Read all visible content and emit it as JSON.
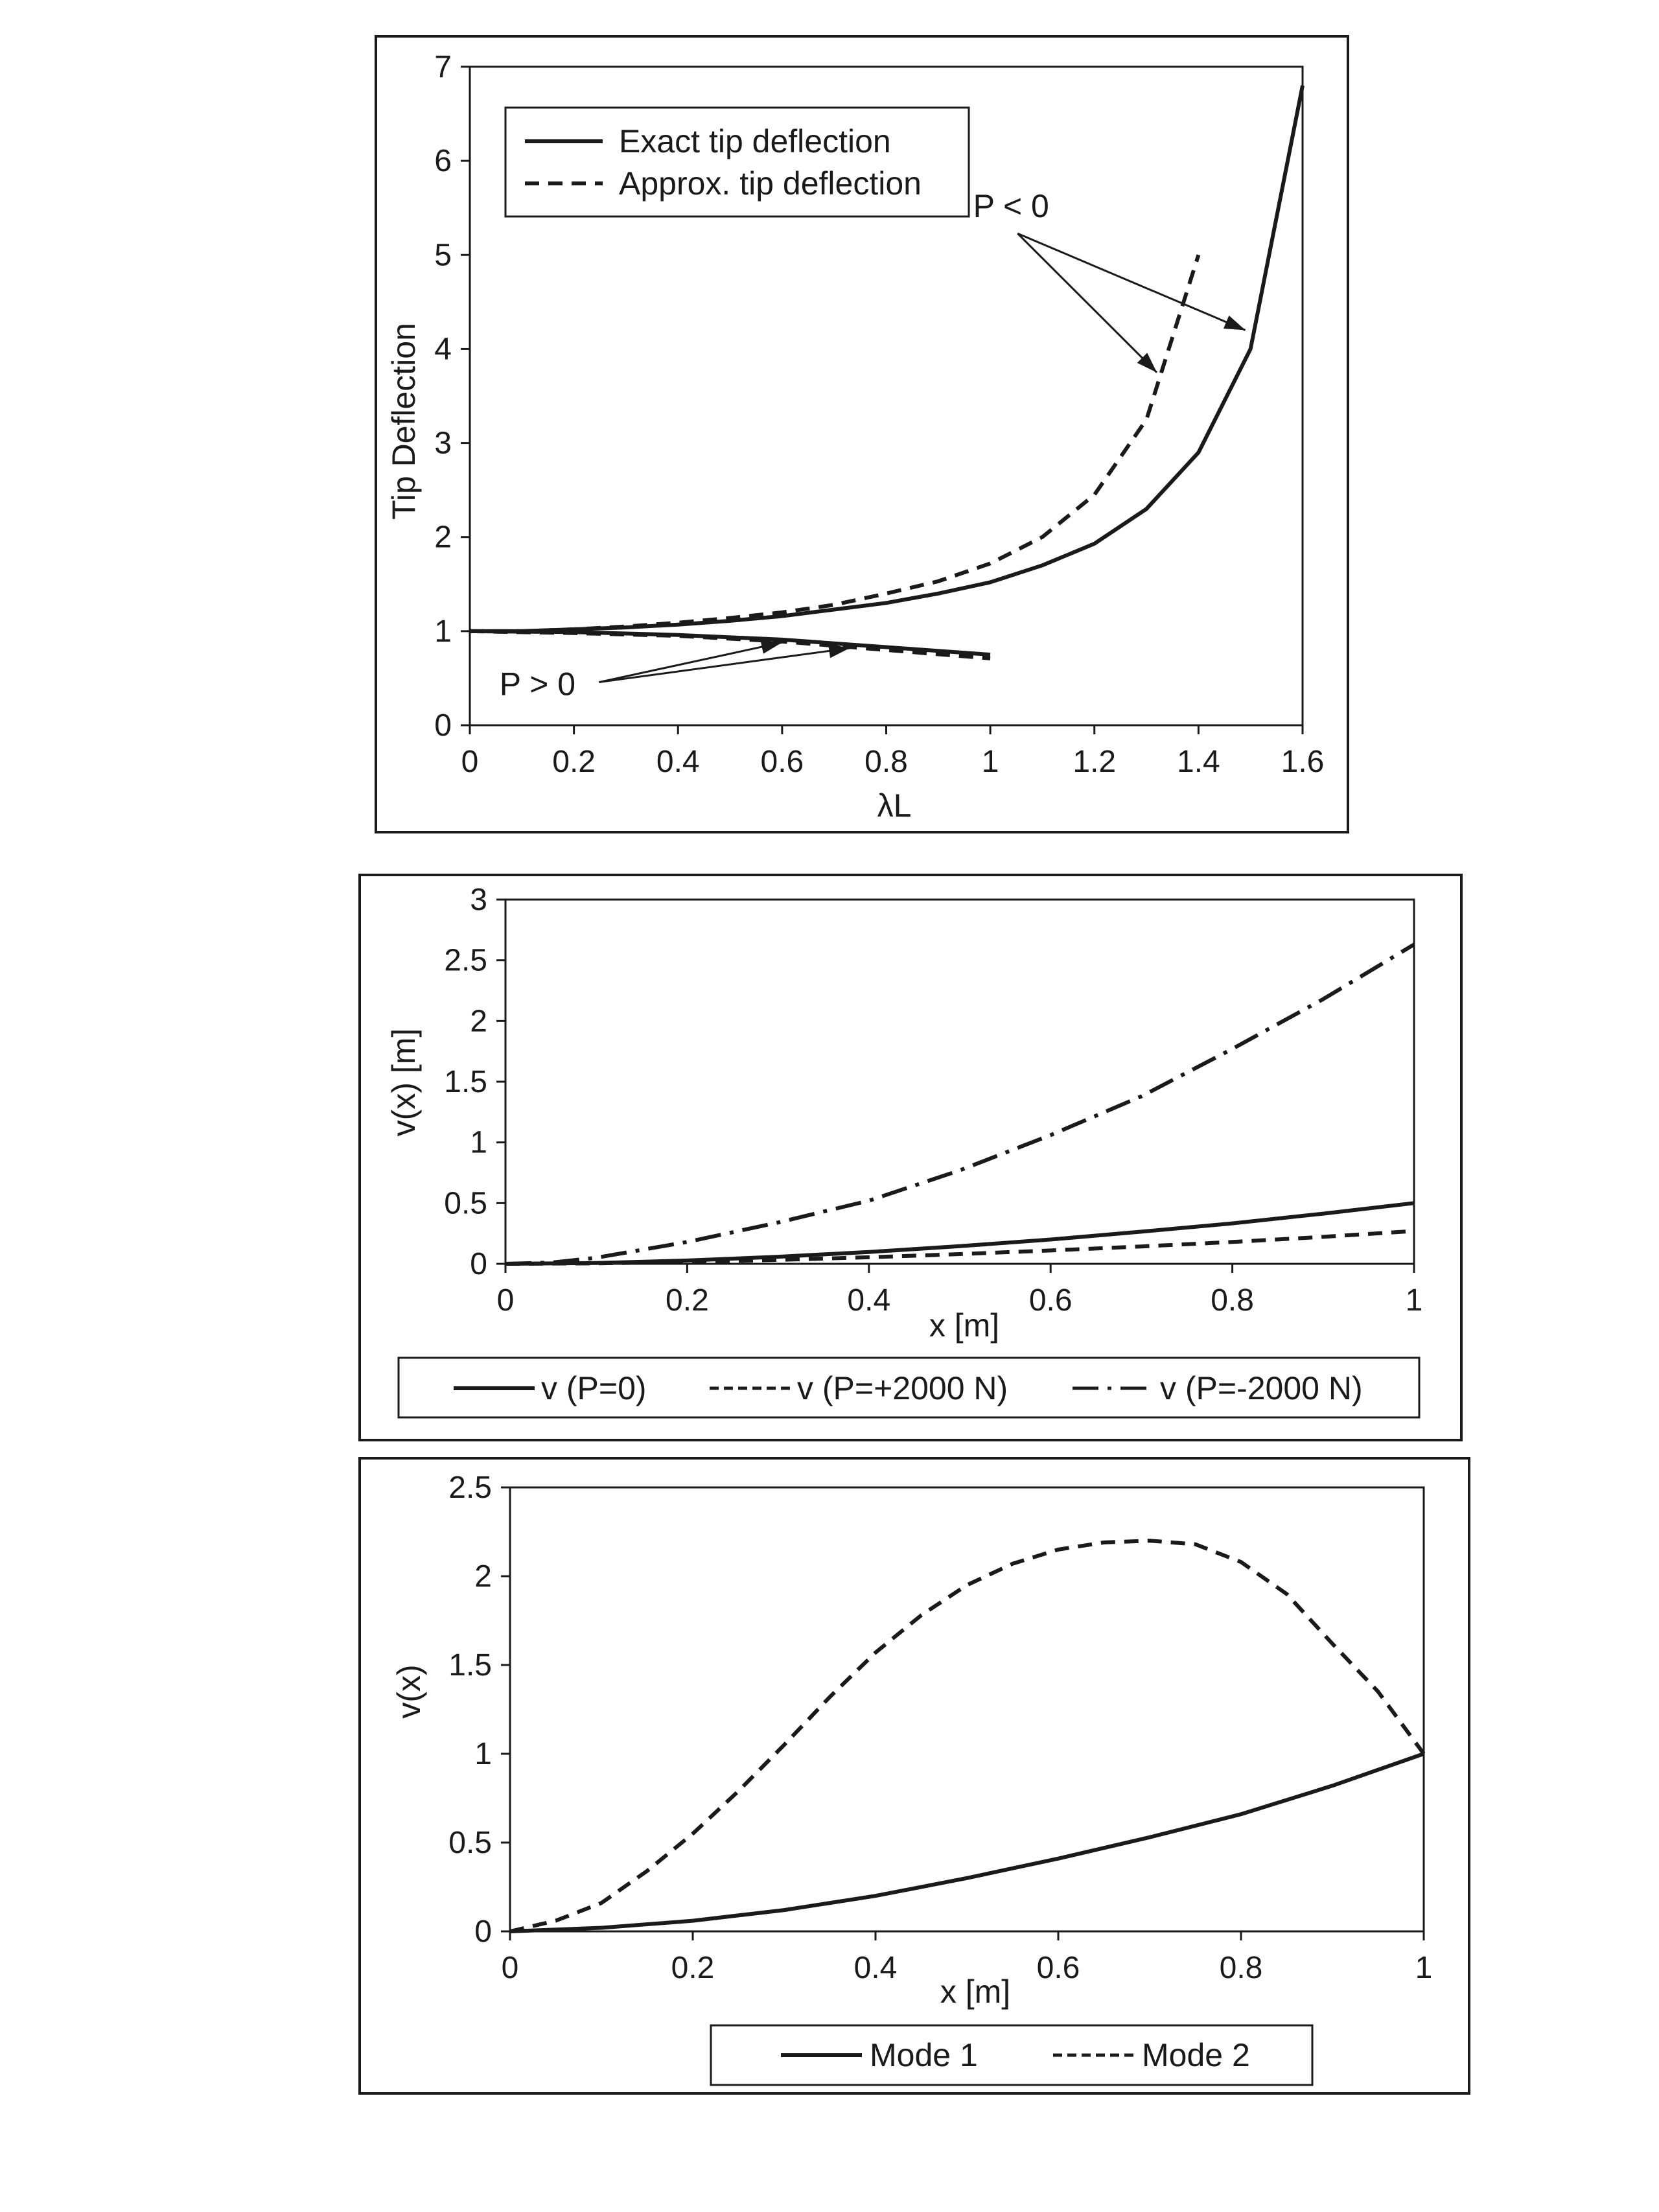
{
  "chart_data": [
    {
      "type": "line",
      "title": "",
      "xlabel": "λL",
      "ylabel": "Tip Deflection",
      "xlim": [
        0,
        1.6
      ],
      "ylim": [
        0,
        7
      ],
      "xticks": [
        "0",
        "0.2",
        "0.4",
        "0.6",
        "0.8",
        "1",
        "1.2",
        "1.4",
        "1.6"
      ],
      "yticks": [
        "0",
        "1",
        "2",
        "3",
        "4",
        "5",
        "6",
        "7"
      ],
      "grid": false,
      "legend_position": "top-left",
      "series": [
        {
          "name": "Exact tip deflection",
          "style": "solid",
          "x": [
            0,
            0.1,
            0.2,
            0.3,
            0.4,
            0.5,
            0.6,
            0.7,
            0.8,
            0.9,
            1.0,
            1.1,
            1.2,
            1.3,
            1.4,
            1.5,
            1.6
          ],
          "y": [
            1.0,
            1.0,
            1.02,
            1.04,
            1.07,
            1.11,
            1.16,
            1.23,
            1.3,
            1.4,
            1.52,
            1.7,
            1.93,
            2.3,
            2.9,
            4.0,
            6.8
          ]
        },
        {
          "name": "Approx. tip deflection",
          "style": "dashed",
          "x": [
            0,
            0.1,
            0.2,
            0.3,
            0.4,
            0.5,
            0.6,
            0.7,
            0.8,
            0.9,
            1.0,
            1.1,
            1.2,
            1.3,
            1.4
          ],
          "y": [
            1.0,
            1.0,
            1.02,
            1.05,
            1.09,
            1.14,
            1.2,
            1.28,
            1.4,
            1.53,
            1.72,
            2.0,
            2.45,
            3.25,
            5.0
          ]
        },
        {
          "name": "Exact tip deflection",
          "style": "solid",
          "x": [
            0,
            0.2,
            0.4,
            0.6,
            0.8,
            1.0
          ],
          "y": [
            1.0,
            0.99,
            0.96,
            0.91,
            0.83,
            0.75
          ]
        },
        {
          "name": "Approx. tip deflection",
          "style": "dashed",
          "x": [
            0,
            0.2,
            0.4,
            0.6,
            0.8,
            1.0
          ],
          "y": [
            1.0,
            0.98,
            0.95,
            0.89,
            0.8,
            0.71
          ]
        }
      ],
      "annotations": [
        {
          "text": "P < 0",
          "x": 1.04,
          "y": 5.4,
          "arrows_to": [
            {
              "x": 1.32,
              "y": 3.75
            },
            {
              "x": 1.49,
              "y": 4.2
            }
          ]
        },
        {
          "text": "P > 0",
          "x": 0.13,
          "y": 0.32,
          "arrows_to": [
            {
              "x": 0.6,
              "y": 0.88
            },
            {
              "x": 0.73,
              "y": 0.82
            }
          ]
        }
      ]
    },
    {
      "type": "line",
      "title": "",
      "xlabel": "x [m]",
      "ylabel": "v(x) [m]",
      "xlim": [
        0,
        1
      ],
      "ylim": [
        0,
        3
      ],
      "xticks": [
        "0",
        "0.2",
        "0.4",
        "0.6",
        "0.8",
        "1"
      ],
      "yticks": [
        "0",
        "0.5",
        "1",
        "1.5",
        "2",
        "2.5",
        "3"
      ],
      "grid": false,
      "legend_position": "bottom",
      "series": [
        {
          "name": "v (P=0)",
          "style": "solid",
          "x": [
            0,
            0.1,
            0.2,
            0.3,
            0.4,
            0.5,
            0.6,
            0.7,
            0.8,
            0.9,
            1.0
          ],
          "y": [
            0,
            0.007,
            0.027,
            0.058,
            0.097,
            0.145,
            0.2,
            0.265,
            0.333,
            0.413,
            0.5
          ]
        },
        {
          "name": "v (P=+2000 N)",
          "style": "dashed",
          "x": [
            0,
            0.1,
            0.2,
            0.3,
            0.4,
            0.5,
            0.6,
            0.7,
            0.8,
            0.9,
            1.0
          ],
          "y": [
            0,
            0.004,
            0.015,
            0.032,
            0.054,
            0.08,
            0.11,
            0.143,
            0.18,
            0.222,
            0.27
          ]
        },
        {
          "name": "v (P=-2000 N)",
          "style": "dashdot",
          "x": [
            0,
            0.05,
            0.1,
            0.2,
            0.3,
            0.4,
            0.5,
            0.6,
            0.7,
            0.8,
            0.9,
            1.0
          ],
          "y": [
            0,
            0.01,
            0.05,
            0.18,
            0.34,
            0.52,
            0.77,
            1.06,
            1.38,
            1.77,
            2.18,
            2.63
          ]
        }
      ]
    },
    {
      "type": "line",
      "title": "",
      "xlabel": "x [m]",
      "ylabel": "v(x)",
      "xlim": [
        0,
        1
      ],
      "ylim": [
        0,
        2.5
      ],
      "xticks": [
        "0",
        "0.2",
        "0.4",
        "0.6",
        "0.8",
        "1"
      ],
      "yticks": [
        "0",
        "0.5",
        "1",
        "1.5",
        "2",
        "2.5"
      ],
      "grid": false,
      "legend_position": "bottom",
      "series": [
        {
          "name": "Mode 1",
          "style": "solid",
          "x": [
            0,
            0.1,
            0.2,
            0.3,
            0.4,
            0.5,
            0.6,
            0.7,
            0.8,
            0.9,
            1.0
          ],
          "y": [
            0,
            0.02,
            0.06,
            0.12,
            0.2,
            0.3,
            0.41,
            0.53,
            0.66,
            0.82,
            1.0
          ]
        },
        {
          "name": "Mode 2",
          "style": "dashed",
          "x": [
            0,
            0.05,
            0.1,
            0.15,
            0.2,
            0.25,
            0.3,
            0.35,
            0.4,
            0.45,
            0.5,
            0.55,
            0.6,
            0.65,
            0.7,
            0.75,
            0.8,
            0.85,
            0.9,
            0.95,
            1.0
          ],
          "y": [
            0,
            0.06,
            0.16,
            0.34,
            0.55,
            0.79,
            1.05,
            1.32,
            1.57,
            1.78,
            1.95,
            2.07,
            2.15,
            2.19,
            2.2,
            2.18,
            2.08,
            1.9,
            1.62,
            1.35,
            1.0
          ]
        }
      ]
    }
  ]
}
